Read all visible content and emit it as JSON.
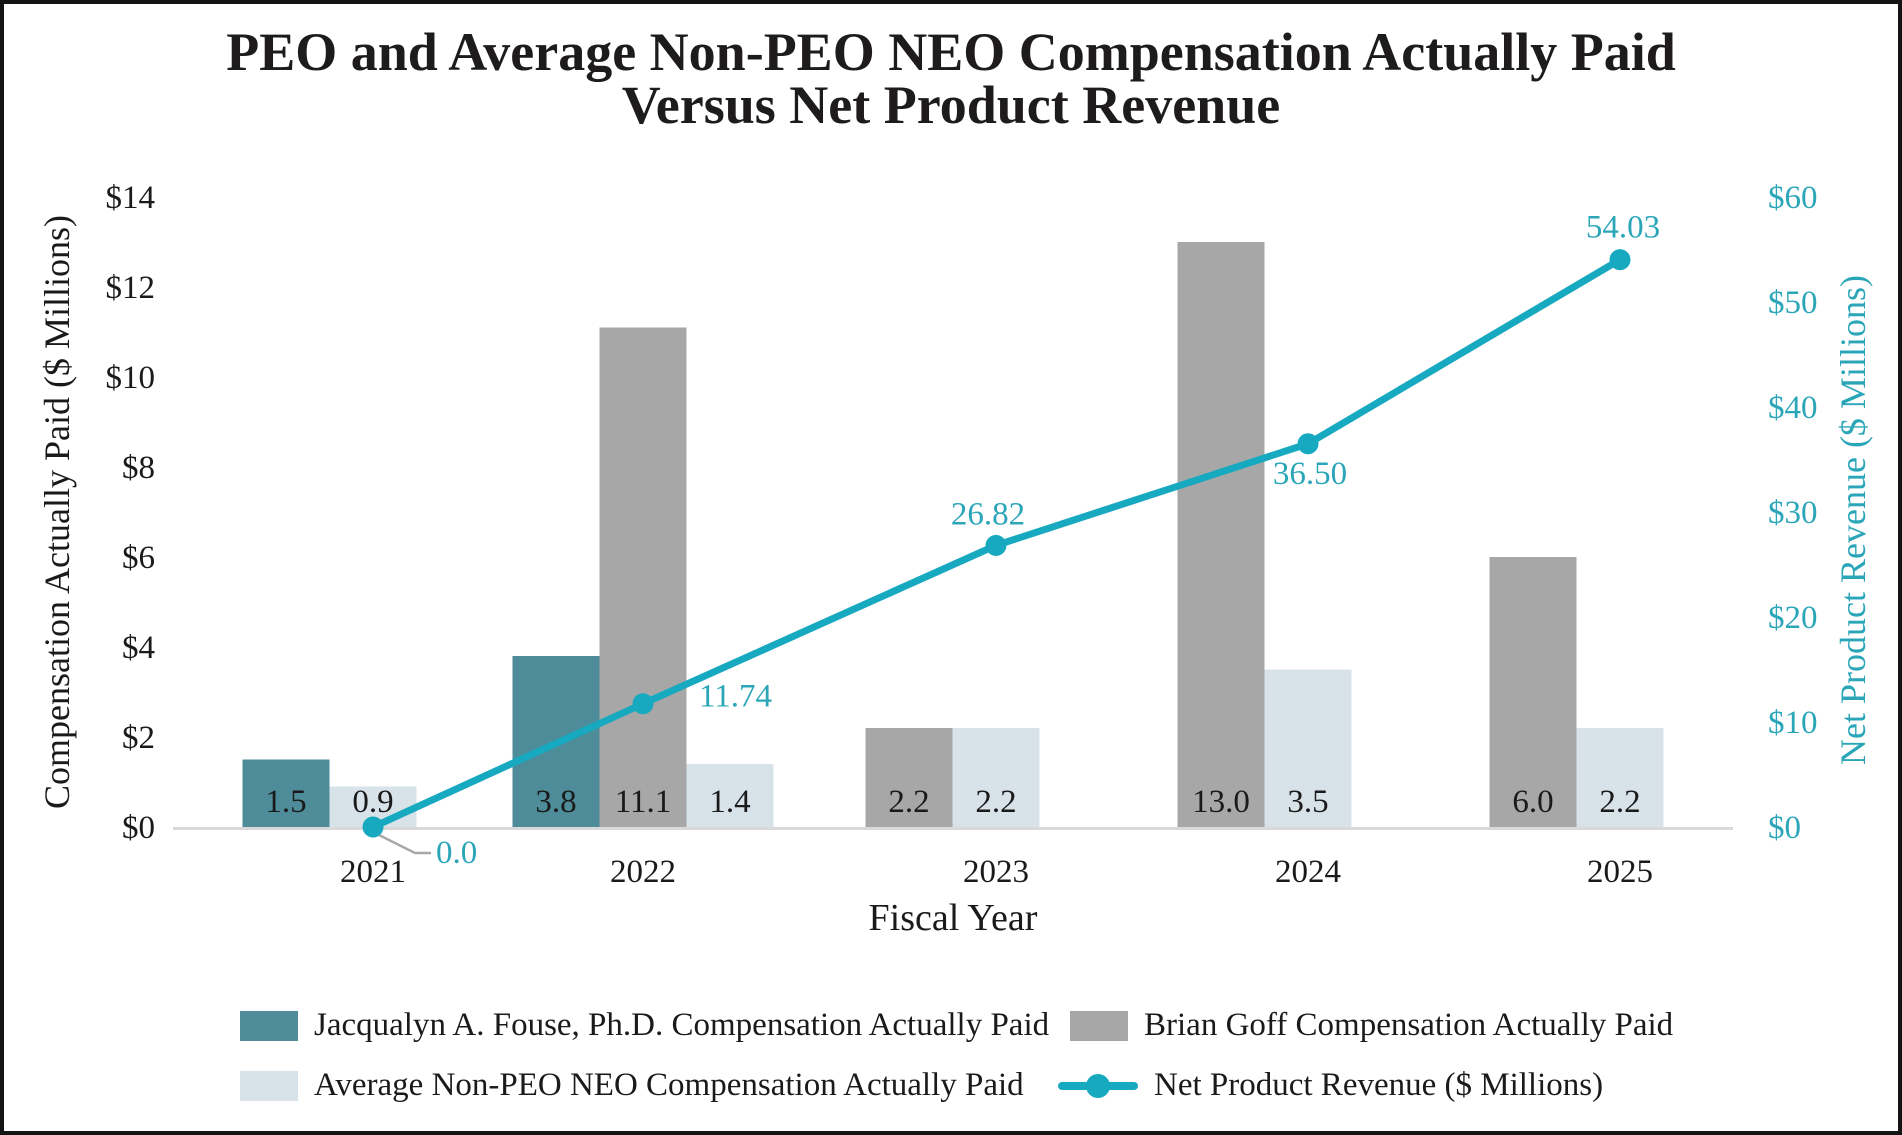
{
  "title": {
    "line1": "PEO and Average Non-PEO NEO Compensation Actually Paid",
    "line2": "Versus Net Product Revenue"
  },
  "axes": {
    "left": {
      "title": "Compensation Actually Paid ($ Millions)",
      "ticks": [
        "$14",
        "$12",
        "$10",
        "$8",
        "$6",
        "$4",
        "$2",
        "$0"
      ]
    },
    "right": {
      "title": "Net Product Revenue ($ Millions)",
      "ticks": [
        "$60",
        "$50",
        "$40",
        "$30",
        "$20",
        "$10",
        "$0"
      ]
    },
    "x": {
      "title": "Fiscal Year"
    }
  },
  "chart_data": {
    "type": "bar+line",
    "categories": [
      "2021",
      "2022",
      "2023",
      "2024",
      "2025"
    ],
    "xlabel": "Fiscal Year",
    "left_axis": {
      "label": "Compensation Actually Paid ($ Millions)",
      "range": [
        0,
        14
      ],
      "tick_step": 2
    },
    "right_axis": {
      "label": "Net Product Revenue ($ Millions)",
      "range": [
        0,
        60
      ],
      "tick_step": 10
    },
    "grid": false,
    "legend_position": "bottom",
    "series": [
      {
        "key": "fouse",
        "type": "bar",
        "name": "Jacqualyn A. Fouse, Ph.D. Compensation Actually Paid",
        "values": [
          1.5,
          3.8,
          null,
          null,
          null
        ],
        "labels": [
          "1.5",
          "3.8",
          "",
          "",
          ""
        ]
      },
      {
        "key": "goff",
        "type": "bar",
        "name": "Brian Goff Compensation Actually Paid",
        "values": [
          null,
          11.1,
          2.2,
          13.0,
          6.0
        ],
        "labels": [
          "",
          "11.1",
          "2.2",
          "13.0",
          "6.0"
        ]
      },
      {
        "key": "avg",
        "type": "bar",
        "name": "Average Non-PEO NEO Compensation Actually Paid",
        "values": [
          0.9,
          1.4,
          2.2,
          3.5,
          2.2
        ],
        "labels": [
          "0.9",
          "1.4",
          "2.2",
          "3.5",
          "2.2"
        ]
      },
      {
        "key": "revenue",
        "type": "line",
        "name": "Net Product Revenue ($ Millions)",
        "values": [
          0.0,
          11.74,
          26.82,
          36.5,
          54.03
        ],
        "labels": [
          "0.0",
          "11.74",
          "26.82",
          "36.50",
          "54.03"
        ]
      }
    ]
  },
  "legend": {
    "items": [
      {
        "key": "fouse",
        "marker": "swatch",
        "label": "Jacqualyn A. Fouse, Ph.D. Compensation Actually Paid"
      },
      {
        "key": "goff",
        "marker": "swatch",
        "label": "Brian Goff Compensation Actually Paid"
      },
      {
        "key": "avg",
        "marker": "swatch",
        "label": "Average Non-PEO NEO Compensation Actually Paid"
      },
      {
        "key": "revenue",
        "marker": "line-dot",
        "label": "Net Product Revenue ($ Millions)"
      }
    ]
  },
  "colors": {
    "fouse_bar": "#4E8C99",
    "goff_bar": "#A7A7A7",
    "avg_bar": "#D7E3E9",
    "revenue_line": "#17A9BF",
    "revenue_text": "#2BA6B9",
    "axis_text": "#1A1A1A",
    "baseline": "#D9D9D9",
    "leader": "#A8A8A8",
    "frame_border": "#141414"
  }
}
